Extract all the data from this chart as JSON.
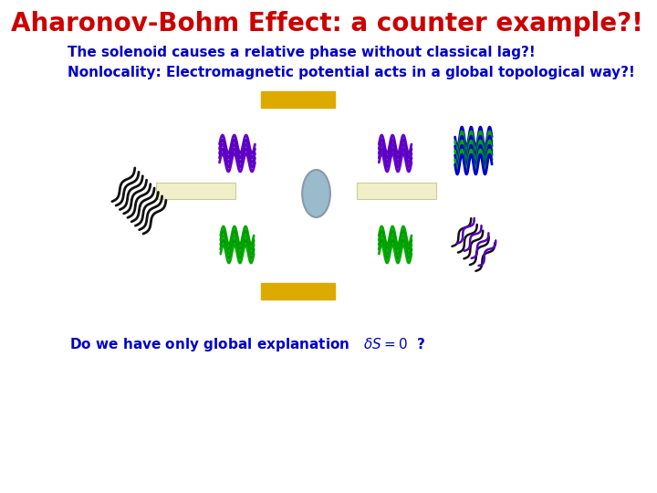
{
  "title": "Aharonov-Bohm Effect: a counter example?!",
  "title_color": "#cc0000",
  "subtitle1": "The solenoid causes a relative phase without classical lag?!",
  "subtitle2": "Nonlocality: Electromagnetic potential acts in a global topological way?!",
  "subtitle_color": "#0000cc",
  "bottom_text": "Do we have only global explanation",
  "bottom_color": "#0000cc",
  "bg_color": "#ffffff",
  "solenoid_color": "#99bbcc",
  "yellow_color": "#ddaa00",
  "pale_yellow_color": "#f0f0c8"
}
